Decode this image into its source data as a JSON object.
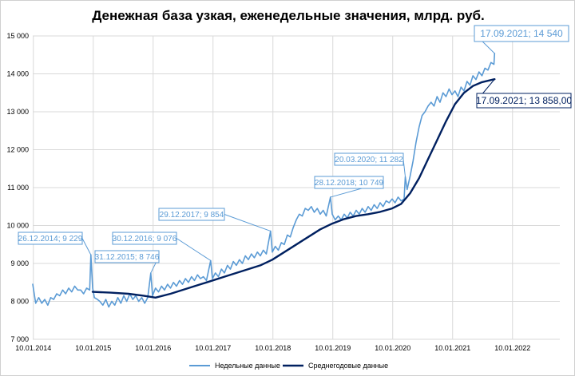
{
  "chart_data": {
    "type": "line",
    "title": "Денежная база узкая, еженедельные значения, млрд. руб.",
    "xlabel": "",
    "ylabel": "",
    "ylim": [
      7000,
      15000
    ],
    "x_ticks": [
      "10.01.2014",
      "10.01.2015",
      "10.01.2016",
      "10.01.2017",
      "10.01.2018",
      "10.01.2019",
      "10.01.2020",
      "10.01.2021",
      "10.01.2022"
    ],
    "y_ticks": [
      "7 000",
      "8 000",
      "9 000",
      "10 000",
      "11 000",
      "12 000",
      "13 000",
      "14 000",
      "15 000"
    ],
    "grid": true,
    "legend_position": "bottom",
    "colors": {
      "weekly": "#5b9bd5",
      "average": "#002060",
      "grid": "#d9d9d9"
    },
    "series": [
      {
        "name": "Недельные данные",
        "key": "weekly",
        "points": [
          [
            2014.0,
            8450
          ],
          [
            2014.05,
            7950
          ],
          [
            2014.1,
            8100
          ],
          [
            2014.15,
            7950
          ],
          [
            2014.2,
            8050
          ],
          [
            2014.25,
            7900
          ],
          [
            2014.3,
            8100
          ],
          [
            2014.35,
            8050
          ],
          [
            2014.4,
            8200
          ],
          [
            2014.45,
            8150
          ],
          [
            2014.5,
            8300
          ],
          [
            2014.55,
            8200
          ],
          [
            2014.6,
            8350
          ],
          [
            2014.65,
            8250
          ],
          [
            2014.7,
            8400
          ],
          [
            2014.75,
            8300
          ],
          [
            2014.8,
            8300
          ],
          [
            2014.85,
            8200
          ],
          [
            2014.9,
            8350
          ],
          [
            2014.95,
            8300
          ],
          [
            2014.97,
            9229
          ],
          [
            2015.0,
            8350
          ],
          [
            2015.03,
            8100
          ],
          [
            2015.08,
            8050
          ],
          [
            2015.12,
            8000
          ],
          [
            2015.17,
            7900
          ],
          [
            2015.22,
            8050
          ],
          [
            2015.27,
            7850
          ],
          [
            2015.32,
            8000
          ],
          [
            2015.37,
            7900
          ],
          [
            2015.42,
            8100
          ],
          [
            2015.47,
            7950
          ],
          [
            2015.52,
            8150
          ],
          [
            2015.57,
            8000
          ],
          [
            2015.62,
            8200
          ],
          [
            2015.67,
            8050
          ],
          [
            2015.72,
            8150
          ],
          [
            2015.77,
            8000
          ],
          [
            2015.82,
            8100
          ],
          [
            2015.87,
            7950
          ],
          [
            2015.92,
            8100
          ],
          [
            2015.97,
            8746
          ],
          [
            2016.0,
            8150
          ],
          [
            2016.05,
            8350
          ],
          [
            2016.1,
            8250
          ],
          [
            2016.15,
            8400
          ],
          [
            2016.2,
            8300
          ],
          [
            2016.25,
            8450
          ],
          [
            2016.3,
            8350
          ],
          [
            2016.35,
            8500
          ],
          [
            2016.4,
            8400
          ],
          [
            2016.45,
            8550
          ],
          [
            2016.5,
            8450
          ],
          [
            2016.55,
            8600
          ],
          [
            2016.6,
            8500
          ],
          [
            2016.65,
            8650
          ],
          [
            2016.7,
            8550
          ],
          [
            2016.75,
            8700
          ],
          [
            2016.8,
            8600
          ],
          [
            2016.85,
            8650
          ],
          [
            2016.9,
            8550
          ],
          [
            2016.97,
            9076
          ],
          [
            2017.0,
            8600
          ],
          [
            2017.05,
            8750
          ],
          [
            2017.1,
            8650
          ],
          [
            2017.15,
            8850
          ],
          [
            2017.2,
            8750
          ],
          [
            2017.25,
            8950
          ],
          [
            2017.3,
            8850
          ],
          [
            2017.35,
            9050
          ],
          [
            2017.4,
            8950
          ],
          [
            2017.45,
            9100
          ],
          [
            2017.5,
            9000
          ],
          [
            2017.55,
            9200
          ],
          [
            2017.6,
            9100
          ],
          [
            2017.65,
            9250
          ],
          [
            2017.7,
            9150
          ],
          [
            2017.75,
            9300
          ],
          [
            2017.8,
            9200
          ],
          [
            2017.85,
            9350
          ],
          [
            2017.9,
            9250
          ],
          [
            2017.97,
            9854
          ],
          [
            2018.0,
            9300
          ],
          [
            2018.05,
            9450
          ],
          [
            2018.1,
            9350
          ],
          [
            2018.15,
            9550
          ],
          [
            2018.2,
            9500
          ],
          [
            2018.25,
            9750
          ],
          [
            2018.3,
            9700
          ],
          [
            2018.35,
            9950
          ],
          [
            2018.4,
            10150
          ],
          [
            2018.45,
            10300
          ],
          [
            2018.5,
            10250
          ],
          [
            2018.55,
            10450
          ],
          [
            2018.6,
            10400
          ],
          [
            2018.65,
            10500
          ],
          [
            2018.7,
            10350
          ],
          [
            2018.75,
            10450
          ],
          [
            2018.8,
            10300
          ],
          [
            2018.85,
            10400
          ],
          [
            2018.9,
            10250
          ],
          [
            2018.97,
            10749
          ],
          [
            2019.0,
            10300
          ],
          [
            2019.05,
            10150
          ],
          [
            2019.1,
            10250
          ],
          [
            2019.15,
            10150
          ],
          [
            2019.2,
            10300
          ],
          [
            2019.25,
            10200
          ],
          [
            2019.3,
            10350
          ],
          [
            2019.35,
            10250
          ],
          [
            2019.4,
            10400
          ],
          [
            2019.45,
            10300
          ],
          [
            2019.5,
            10450
          ],
          [
            2019.55,
            10350
          ],
          [
            2019.6,
            10500
          ],
          [
            2019.65,
            10400
          ],
          [
            2019.7,
            10550
          ],
          [
            2019.75,
            10450
          ],
          [
            2019.8,
            10600
          ],
          [
            2019.85,
            10500
          ],
          [
            2019.9,
            10650
          ],
          [
            2019.95,
            10600
          ],
          [
            2020.0,
            10700
          ],
          [
            2020.05,
            10600
          ],
          [
            2020.1,
            10750
          ],
          [
            2020.15,
            10650
          ],
          [
            2020.2,
            10700
          ],
          [
            2020.22,
            11282
          ],
          [
            2020.25,
            10950
          ],
          [
            2020.3,
            11300
          ],
          [
            2020.35,
            11700
          ],
          [
            2020.4,
            12200
          ],
          [
            2020.45,
            12600
          ],
          [
            2020.5,
            12900
          ],
          [
            2020.55,
            13000
          ],
          [
            2020.6,
            13150
          ],
          [
            2020.65,
            13250
          ],
          [
            2020.7,
            13150
          ],
          [
            2020.75,
            13400
          ],
          [
            2020.8,
            13250
          ],
          [
            2020.85,
            13500
          ],
          [
            2020.9,
            13400
          ],
          [
            2020.95,
            13600
          ],
          [
            2021.0,
            13450
          ],
          [
            2021.05,
            13550
          ],
          [
            2021.1,
            13400
          ],
          [
            2021.15,
            13650
          ],
          [
            2021.2,
            13550
          ],
          [
            2021.25,
            13800
          ],
          [
            2021.3,
            13700
          ],
          [
            2021.35,
            13950
          ],
          [
            2021.4,
            13850
          ],
          [
            2021.45,
            14050
          ],
          [
            2021.5,
            13950
          ],
          [
            2021.55,
            14150
          ],
          [
            2021.6,
            14100
          ],
          [
            2021.65,
            14300
          ],
          [
            2021.7,
            14250
          ],
          [
            2021.71,
            14540
          ]
        ]
      },
      {
        "name": "Среднегодовые данные",
        "key": "average",
        "points": [
          [
            2015.0,
            8250
          ],
          [
            2015.3,
            8230
          ],
          [
            2015.6,
            8200
          ],
          [
            2015.85,
            8150
          ],
          [
            2016.05,
            8100
          ],
          [
            2016.3,
            8200
          ],
          [
            2016.6,
            8350
          ],
          [
            2016.9,
            8500
          ],
          [
            2017.2,
            8650
          ],
          [
            2017.5,
            8800
          ],
          [
            2017.8,
            8950
          ],
          [
            2018.0,
            9100
          ],
          [
            2018.2,
            9300
          ],
          [
            2018.4,
            9500
          ],
          [
            2018.6,
            9700
          ],
          [
            2018.8,
            9900
          ],
          [
            2019.0,
            10050
          ],
          [
            2019.2,
            10170
          ],
          [
            2019.4,
            10250
          ],
          [
            2019.6,
            10300
          ],
          [
            2019.8,
            10360
          ],
          [
            2020.0,
            10450
          ],
          [
            2020.15,
            10570
          ],
          [
            2020.3,
            10850
          ],
          [
            2020.45,
            11250
          ],
          [
            2020.6,
            11750
          ],
          [
            2020.75,
            12250
          ],
          [
            2020.9,
            12750
          ],
          [
            2021.05,
            13200
          ],
          [
            2021.2,
            13500
          ],
          [
            2021.35,
            13680
          ],
          [
            2021.5,
            13780
          ],
          [
            2021.71,
            13858
          ]
        ]
      }
    ],
    "annotations": [
      {
        "label": "26.12.2014; 9 229",
        "series": "weekly",
        "x": 2014.97,
        "y": 9229,
        "align": "left"
      },
      {
        "label": "31.12.2015; 8 746",
        "series": "weekly",
        "x": 2015.97,
        "y": 8746,
        "align": "left"
      },
      {
        "label": "30.12.2016; 9 076",
        "series": "weekly",
        "x": 2016.97,
        "y": 9076,
        "align": "left"
      },
      {
        "label": "29.12.2017; 9 854",
        "series": "weekly",
        "x": 2017.97,
        "y": 9854,
        "align": "left"
      },
      {
        "label": "28.12.2018; 10 749",
        "series": "weekly",
        "x": 2018.97,
        "y": 10749,
        "align": "left"
      },
      {
        "label": "20.03.2020; 11 282",
        "series": "weekly",
        "x": 2020.22,
        "y": 11282,
        "align": "left"
      },
      {
        "label": "17.09.2021; 14 540",
        "series": "weekly",
        "x": 2021.71,
        "y": 14540,
        "align": "right"
      },
      {
        "label": "17.09.2021; 13 858,00",
        "series": "average",
        "x": 2021.71,
        "y": 13858,
        "align": "right"
      }
    ]
  }
}
